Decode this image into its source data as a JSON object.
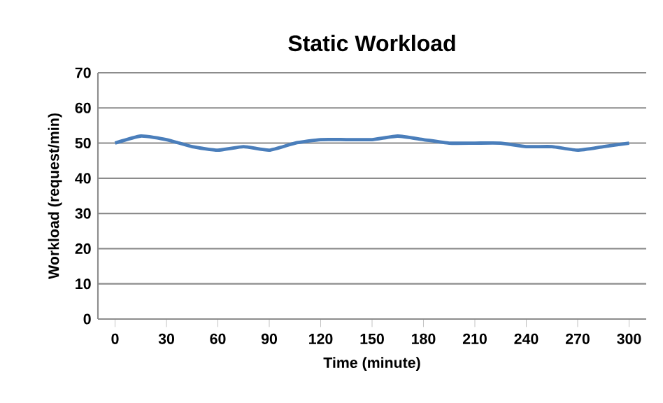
{
  "chart_data": {
    "type": "line",
    "title": "Static Workload",
    "xlabel": "Time (minute)",
    "ylabel": "Workload (request/min)",
    "x": [
      0,
      15,
      30,
      45,
      60,
      75,
      90,
      105,
      120,
      135,
      150,
      165,
      180,
      195,
      210,
      225,
      240,
      255,
      270,
      285,
      300
    ],
    "series": [
      {
        "color": "#4a7ebb",
        "values": [
          50,
          52,
          51,
          49,
          48,
          49,
          48,
          50,
          51,
          51,
          51,
          52,
          51,
          50,
          50,
          50,
          49,
          49,
          48,
          49,
          50
        ]
      }
    ],
    "xlim": [
      -10,
      310
    ],
    "xticks": [
      0,
      30,
      60,
      90,
      120,
      150,
      180,
      210,
      240,
      270,
      300
    ],
    "ylim": [
      0,
      70
    ],
    "yticks": [
      0,
      10,
      20,
      30,
      40,
      50,
      60,
      70
    ],
    "grid": "y",
    "marker": "none",
    "line_style": "solid"
  }
}
